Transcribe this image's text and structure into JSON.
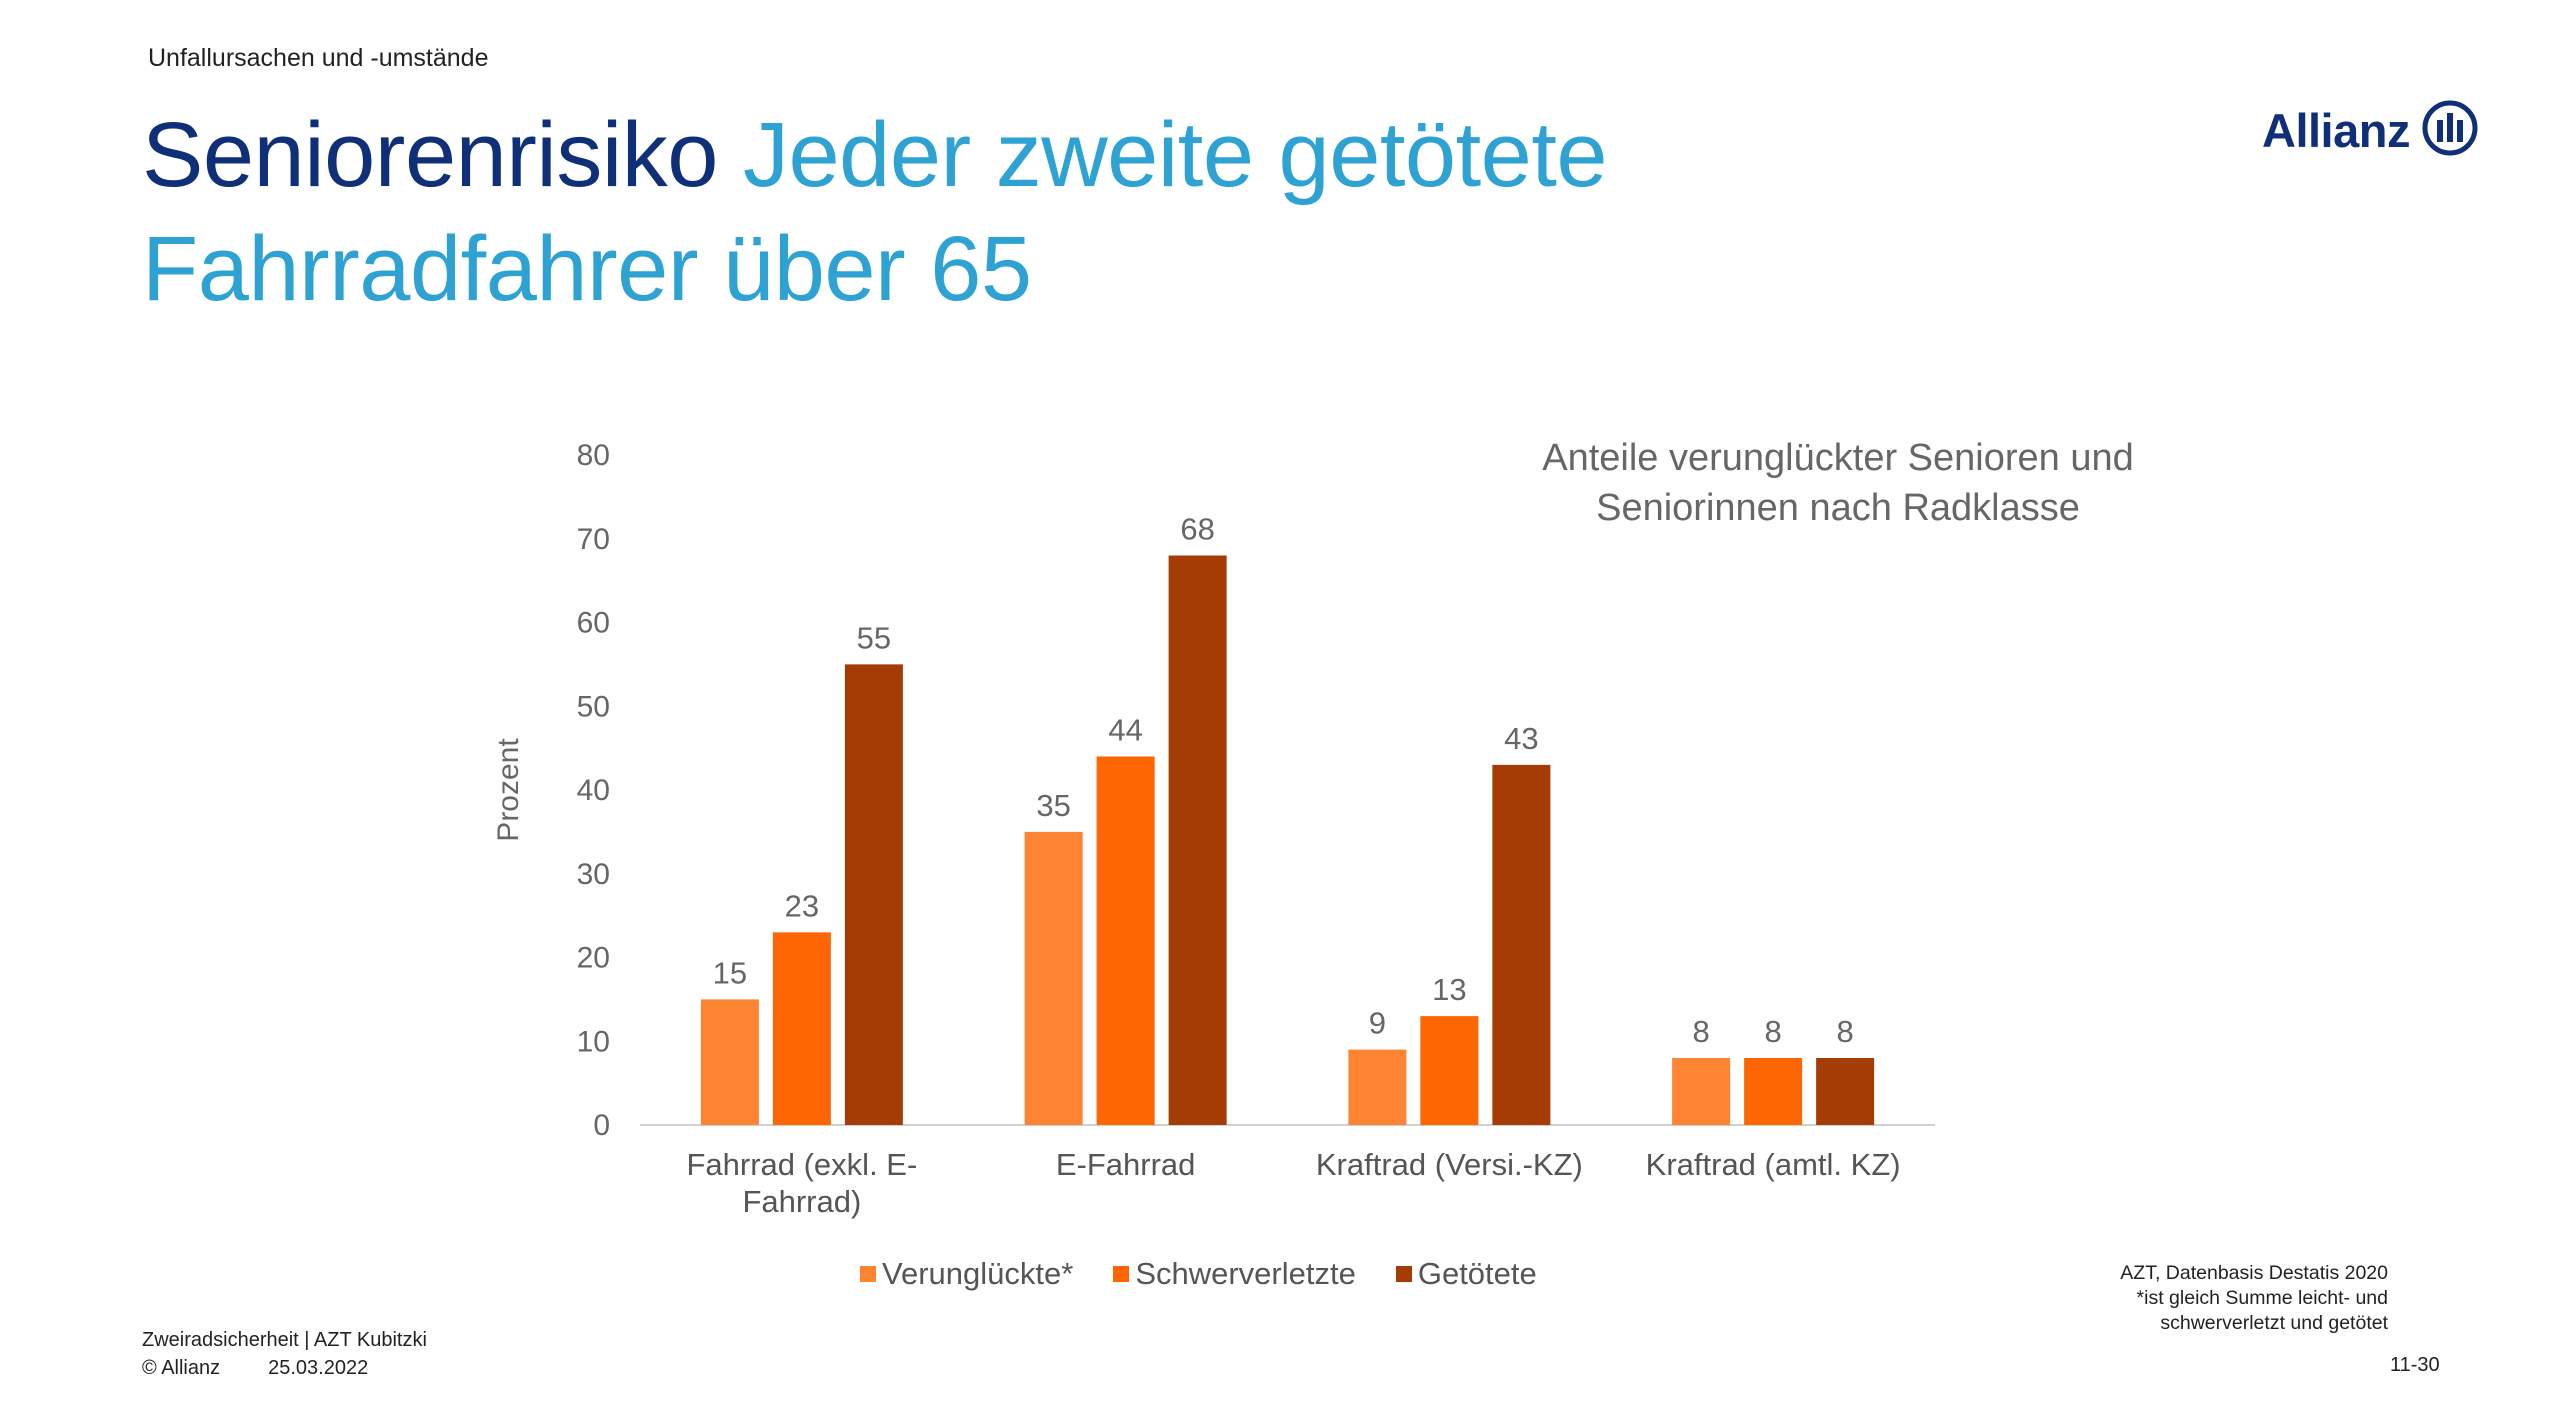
{
  "header": {
    "section_label": "Unfallursachen und -umstände",
    "title_main": "Seniorenrisiko",
    "title_sub": "Jeder zweite getötete Fahrradfahrer über 65"
  },
  "logo": {
    "text": "Allianz",
    "icon": "allianz-eagle-icon",
    "color": "#0f2f78"
  },
  "chart_data": {
    "type": "bar",
    "title": "Anteile verunglückter Senioren und Seniorinnen nach Radklasse",
    "title_lines": [
      "Anteile verunglückter Senioren und",
      "Seniorinnen nach Radklasse"
    ],
    "ylabel": "Prozent",
    "xlabel": "",
    "ylim": [
      0,
      80
    ],
    "yticks": [
      0,
      10,
      20,
      30,
      40,
      50,
      60,
      70,
      80
    ],
    "grid": false,
    "legend_position": "bottom",
    "categories": [
      [
        "Fahrrad (exkl. E-",
        "Fahrrad)"
      ],
      [
        "E-Fahrrad"
      ],
      [
        "Kraftrad (Versi.-KZ)"
      ],
      [
        "Kraftrad (amtl. KZ)"
      ]
    ],
    "series": [
      {
        "name": "Verunglückte*",
        "color": "#fd8433",
        "values": [
          15,
          35,
          9,
          8
        ]
      },
      {
        "name": "Schwerverletzte",
        "color": "#fd6603",
        "values": [
          23,
          44,
          13,
          8
        ]
      },
      {
        "name": "Getötete",
        "color": "#a53c05",
        "values": [
          55,
          68,
          43,
          8
        ]
      }
    ]
  },
  "source_note": {
    "line1": "AZT, Datenbasis Destatis 2020",
    "line2": "*ist gleich Summe leicht- und",
    "line3": "schwerverletzt und getötet"
  },
  "footer": {
    "line1": "Zweiradsicherheit | AZT Kubitzki",
    "copyright": "© Allianz",
    "date": "25.03.2022",
    "page_number": "11-30"
  }
}
